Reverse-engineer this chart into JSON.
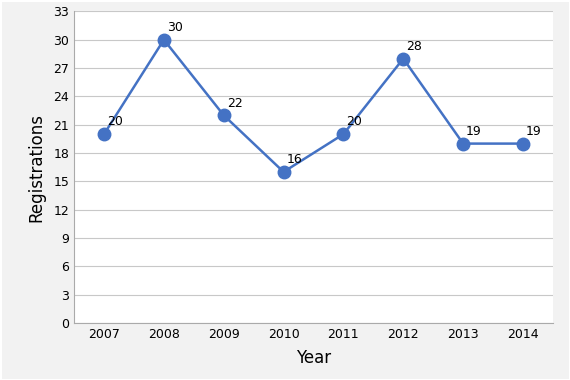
{
  "years": [
    2007,
    2008,
    2009,
    2010,
    2011,
    2012,
    2013,
    2014
  ],
  "values": [
    20,
    30,
    22,
    16,
    20,
    28,
    19,
    19
  ],
  "line_color": "#4472C4",
  "marker_color": "#4472C4",
  "xlabel": "Year",
  "ylabel": "Registrations",
  "ylim": [
    0,
    33
  ],
  "yticks": [
    0,
    3,
    6,
    9,
    12,
    15,
    18,
    21,
    24,
    27,
    30,
    33
  ],
  "background_color": "#f2f2f2",
  "plot_bg_color": "#ffffff",
  "grid_color": "#c8c8c8",
  "font_size_labels": 12,
  "font_size_ticks": 9,
  "font_size_annotations": 9,
  "marker_size": 9,
  "line_width": 1.8,
  "annotation_x_offsets": [
    0.05,
    0.05,
    0.05,
    0.05,
    0.05,
    0.05,
    0.05,
    0.05
  ],
  "annotation_y_offsets": [
    0.6,
    0.6,
    0.6,
    0.6,
    0.6,
    0.6,
    0.6,
    0.6
  ]
}
